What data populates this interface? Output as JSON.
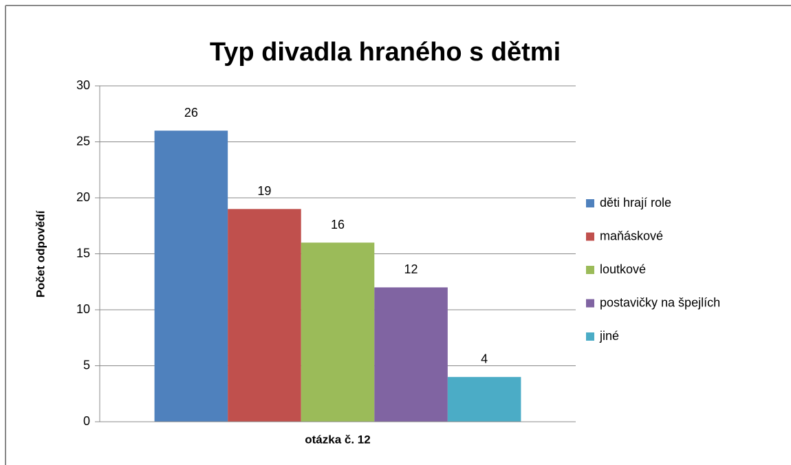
{
  "chart_data": {
    "type": "bar",
    "title": "Typ divadla hraného s dětmi",
    "y_label": "Počet odpovědí",
    "categories": [
      "otázka č. 12"
    ],
    "series": [
      {
        "name": "děti hrají role",
        "color": "#4f81bd",
        "values": [
          26
        ]
      },
      {
        "name": "maňáskové",
        "color": "#c0504d",
        "values": [
          19
        ]
      },
      {
        "name": "loutkové",
        "color": "#9bbb59",
        "values": [
          16
        ]
      },
      {
        "name": "postavičky na špejlích",
        "color": "#8064a2",
        "values": [
          12
        ]
      },
      {
        "name": "jiné",
        "color": "#4bacc6",
        "values": [
          4
        ]
      }
    ],
    "ylim": [
      0,
      30
    ],
    "yticks": [
      0,
      5,
      10,
      15,
      20,
      25,
      30
    ],
    "grid": true,
    "legend": "right"
  }
}
